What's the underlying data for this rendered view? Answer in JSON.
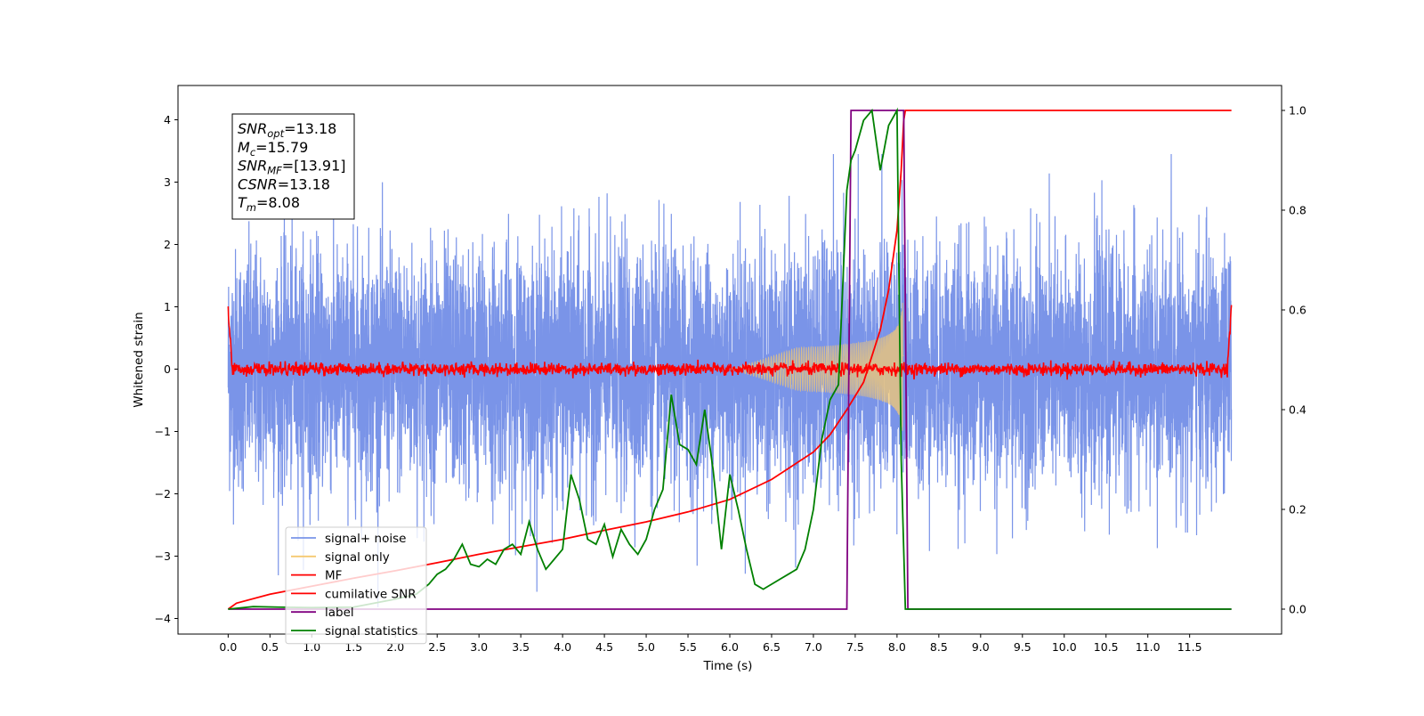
{
  "chart_data": {
    "type": "line",
    "xlabel": "Time (s)",
    "ylabel": "Whitened strain",
    "xlim": [
      -0.6,
      12.6
    ],
    "ylim": [
      -4.25,
      4.55
    ],
    "y2lim": [
      -0.05,
      1.05
    ],
    "x_ticks": [
      0,
      0.5,
      1,
      1.5,
      2,
      2.5,
      3,
      3.5,
      4,
      4.5,
      5,
      5.5,
      6,
      6.5,
      7,
      7.5,
      8,
      8.5,
      9,
      9.5,
      10,
      10.5,
      11,
      11.5
    ],
    "x_tick_labels": [
      "0.0",
      "0.5",
      "1.0",
      "1.5",
      "2.0",
      "2.5",
      "3.0",
      "3.5",
      "4.0",
      "4.5",
      "5.0",
      "5.5",
      "6.0",
      "6.5",
      "7.0",
      "7.5",
      "8.0",
      "8.5",
      "9.0",
      "9.5",
      "10.0",
      "10.5",
      "11.0",
      "11.5"
    ],
    "y_ticks": [
      -4,
      -3,
      -2,
      -1,
      0,
      1,
      2,
      3,
      4
    ],
    "y_tick_labels": [
      "−4",
      "−3",
      "−2",
      "−1",
      "0",
      "1",
      "2",
      "3",
      "4"
    ],
    "y2_ticks": [
      0,
      0.2,
      0.4,
      0.6,
      0.8,
      1.0
    ],
    "y2_tick_labels": [
      "0.0",
      "0.2",
      "0.4",
      "0.6",
      "0.8",
      "1.0"
    ],
    "grid": false,
    "legend_position": "lower-left",
    "annotation": {
      "lines": [
        {
          "var": "SNR",
          "sub": "opt",
          "value": "=13.18"
        },
        {
          "var": "M",
          "sub": "c",
          "value": "=15.79"
        },
        {
          "var": "SNR",
          "sub": "MF",
          "value": "=[13.91]"
        },
        {
          "var": "CSNR",
          "sub": "",
          "value": "=13.18"
        },
        {
          "var": "T",
          "sub": "m",
          "value": "=8.08"
        }
      ]
    },
    "series": [
      {
        "name": "signal+ noise",
        "color": "#7a94e8",
        "axis": "left",
        "kind": "noise",
        "x_range": [
          0,
          12
        ],
        "typical_range": [
          -2.3,
          2.4
        ],
        "extreme_range": [
          -4.0,
          3.45
        ]
      },
      {
        "name": "signal only",
        "color": "#f5c971",
        "axis": "left",
        "kind": "chirp",
        "x_range": [
          6.0,
          8.08
        ],
        "peak_amplitude": 1.1
      },
      {
        "name": "MF",
        "color": "#ff0000",
        "axis": "left",
        "kind": "mf",
        "x_range": [
          0,
          12
        ],
        "level": 0.0,
        "edge_value": 1.0
      },
      {
        "name": "cumilative SNR",
        "color": "#ff0000",
        "axis": "right",
        "kind": "line",
        "x": [
          0,
          0.1,
          0.5,
          1,
          1.5,
          2,
          2.5,
          3,
          3.5,
          4,
          4.5,
          5,
          5.5,
          6,
          6.5,
          7,
          7.2,
          7.4,
          7.6,
          7.8,
          7.9,
          8.0,
          8.05,
          8.08,
          8.1,
          12
        ],
        "y": [
          0.0,
          0.012,
          0.03,
          0.046,
          0.062,
          0.077,
          0.093,
          0.11,
          0.125,
          0.14,
          0.158,
          0.175,
          0.195,
          0.22,
          0.26,
          0.315,
          0.35,
          0.4,
          0.455,
          0.56,
          0.64,
          0.76,
          0.88,
          0.98,
          1.0,
          1.0
        ]
      },
      {
        "name": "label",
        "color": "#800080",
        "axis": "right",
        "kind": "line",
        "x": [
          0,
          7.4,
          7.45,
          8.08,
          8.13,
          12
        ],
        "y": [
          0,
          0,
          1,
          1,
          0,
          0
        ]
      },
      {
        "name": "signal statistics",
        "color": "#008000",
        "axis": "right",
        "kind": "line",
        "x": [
          0,
          0.3,
          0.6,
          1.0,
          1.5,
          2.0,
          2.25,
          2.4,
          2.5,
          2.6,
          2.7,
          2.8,
          2.9,
          3.0,
          3.1,
          3.2,
          3.3,
          3.4,
          3.5,
          3.6,
          3.7,
          3.8,
          3.9,
          4.0,
          4.1,
          4.2,
          4.3,
          4.4,
          4.5,
          4.6,
          4.7,
          4.8,
          4.9,
          5.0,
          5.1,
          5.2,
          5.3,
          5.4,
          5.5,
          5.6,
          5.7,
          5.8,
          5.9,
          6.0,
          6.1,
          6.2,
          6.3,
          6.4,
          6.5,
          6.6,
          6.7,
          6.8,
          6.9,
          7.0,
          7.1,
          7.2,
          7.3,
          7.4,
          7.45,
          7.5,
          7.6,
          7.7,
          7.8,
          7.9,
          8.0,
          8.05,
          8.1,
          12
        ],
        "y": [
          0.0,
          0.005,
          0.004,
          0.003,
          0.004,
          0.02,
          0.03,
          0.05,
          0.07,
          0.08,
          0.1,
          0.13,
          0.09,
          0.085,
          0.1,
          0.09,
          0.12,
          0.13,
          0.11,
          0.175,
          0.12,
          0.08,
          0.1,
          0.12,
          0.27,
          0.22,
          0.14,
          0.13,
          0.17,
          0.105,
          0.16,
          0.13,
          0.11,
          0.14,
          0.2,
          0.24,
          0.43,
          0.33,
          0.32,
          0.29,
          0.4,
          0.28,
          0.12,
          0.27,
          0.2,
          0.12,
          0.05,
          0.04,
          0.05,
          0.06,
          0.07,
          0.08,
          0.12,
          0.2,
          0.34,
          0.42,
          0.45,
          0.84,
          0.9,
          0.92,
          0.98,
          1.0,
          0.88,
          0.97,
          1.0,
          0.3,
          0.0,
          0.0
        ]
      }
    ]
  }
}
